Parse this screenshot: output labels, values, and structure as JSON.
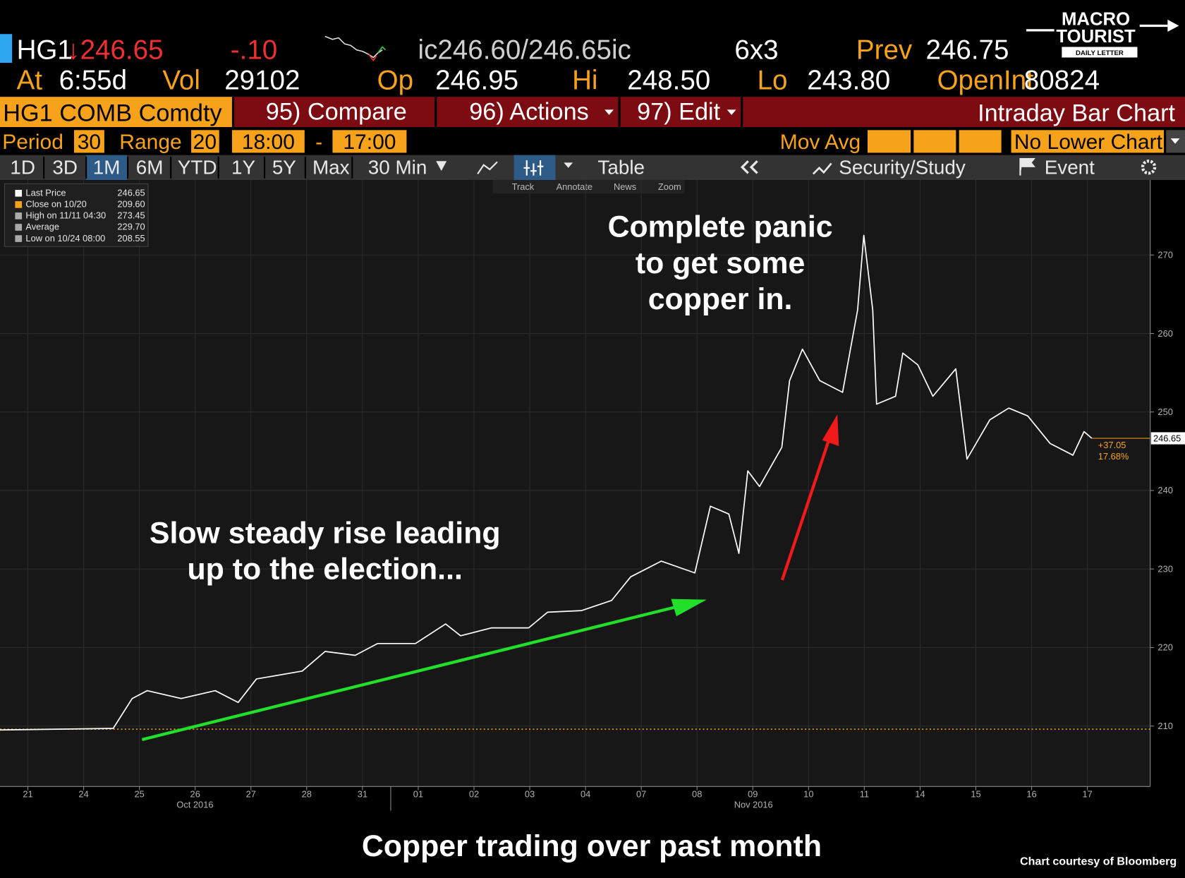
{
  "header": {
    "row1": {
      "ticker": "HG1",
      "last": "↓246.65",
      "change": "-.10",
      "bid_ask": "ic246.60/246.65ic",
      "size": "6x3",
      "prev_label": "Prev",
      "prev": "246.75"
    },
    "row2": {
      "at_label": "At",
      "time": "6:55d",
      "vol_label": "Vol",
      "vol": "29102",
      "op_label": "Op",
      "op": "246.95",
      "hi_label": "Hi",
      "hi": "248.50",
      "lo_label": "Lo",
      "lo": "243.80",
      "oi_label": "OpenInt",
      "oi": "80824"
    },
    "logo": {
      "line1": "MACRO",
      "line2": "TOURIST",
      "line3": "DAILY LETTER"
    }
  },
  "toolbar": {
    "security": "HG1 COMB Comdty",
    "compare": "95) Compare",
    "actions": "96) Actions",
    "edit": "97) Edit",
    "view": "Intraday Bar Chart",
    "period_label": "Period",
    "period": "30",
    "range_label": "Range",
    "range": "20",
    "start": "18:00",
    "dash": "-",
    "end": "17:00",
    "mov_avg": "Mov Avg",
    "lower": "No Lower Chart",
    "tabs": [
      "1D",
      "3D",
      "1M",
      "6M",
      "YTD",
      "1Y",
      "5Y",
      "Max"
    ],
    "interval": "30 Min",
    "table": "Table",
    "study": "Security/Study",
    "event": "Event",
    "tools": [
      "Track",
      "Annotate",
      "News",
      "Zoom"
    ]
  },
  "legend": [
    {
      "label": "Last Price",
      "value": "246.65"
    },
    {
      "label": "Close on 10/20",
      "value": "209.60"
    },
    {
      "label": "High on 11/11 04:30",
      "value": "273.45"
    },
    {
      "label": "Average",
      "value": "229.70"
    },
    {
      "label": "Low on 10/24 08:00",
      "value": "208.55"
    }
  ],
  "chart_data": {
    "type": "line",
    "color": "#ffffff",
    "grid": true,
    "x": [
      -0.5,
      1.53,
      1.87,
      2.14,
      2.75,
      3.36,
      3.77,
      4.1,
      4.92,
      5.33,
      5.87,
      6.27,
      6.95,
      7.49,
      7.76,
      8.31,
      8.98,
      9.32,
      9.93,
      10.47,
      10.81,
      11.36,
      11.96,
      12.24,
      12.57,
      12.75,
      12.91,
      13.12,
      13.52,
      13.66,
      13.89,
      14.2,
      14.61,
      14.88,
      14.99,
      15.15,
      15.22,
      15.56,
      15.69,
      15.96,
      16.23,
      16.64,
      16.84,
      17.25,
      17.59,
      17.93,
      18.33,
      18.74,
      18.94,
      19.08
    ],
    "values": [
      209.5,
      209.7,
      213.5,
      214.5,
      213.5,
      214.5,
      213,
      216,
      217,
      219.5,
      219,
      220.5,
      220.5,
      223,
      221.5,
      222.5,
      222.5,
      224.5,
      224.7,
      226,
      229,
      231,
      229.5,
      238,
      237,
      232,
      242.5,
      240.5,
      245.5,
      254,
      258,
      254,
      252.5,
      263,
      272.5,
      263,
      251,
      252,
      257.5,
      256,
      252,
      255.5,
      244,
      249,
      250.5,
      249.5,
      246,
      244.5,
      247.5,
      246.65
    ],
    "xlim": [
      -0.5,
      20.1
    ],
    "ylim": [
      202.3,
      279.55
    ],
    "xticks": [
      {
        "value": 0,
        "label": "21"
      },
      {
        "value": 1,
        "label": "24"
      },
      {
        "value": 2,
        "label": "25"
      },
      {
        "value": 3,
        "label": "26"
      },
      {
        "value": 4,
        "label": "27"
      },
      {
        "value": 5,
        "label": "28"
      },
      {
        "value": 6,
        "label": "31"
      },
      {
        "value": 7,
        "label": "01"
      },
      {
        "value": 8,
        "label": "02"
      },
      {
        "value": 9,
        "label": "03"
      },
      {
        "value": 10,
        "label": "04"
      },
      {
        "value": 11,
        "label": "07"
      },
      {
        "value": 12,
        "label": "08"
      },
      {
        "value": 13,
        "label": "09"
      },
      {
        "value": 14,
        "label": "10"
      },
      {
        "value": 15,
        "label": "11"
      },
      {
        "value": 16,
        "label": "14"
      },
      {
        "value": 17,
        "label": "15"
      },
      {
        "value": 18,
        "label": "16"
      },
      {
        "value": 19,
        "label": "17"
      }
    ],
    "yticks": [
      210,
      220,
      230,
      240,
      250,
      260,
      270
    ],
    "month_labels": [
      "Oct 2016",
      "Nov 2016"
    ],
    "reference_line": {
      "value": 209.6,
      "color": "#f7a21b"
    },
    "last_value": 246.65,
    "last_label": "246.65",
    "change_label": "+37.05",
    "change_pct_label": "17.68%",
    "annotations": [
      [
        "Complete panic",
        "to get some",
        "copper in."
      ],
      [
        "Slow steady rise leading",
        "up to the election..."
      ]
    ]
  },
  "caption": "Copper trading over past month",
  "credit": "Chart courtesy of Bloomberg"
}
